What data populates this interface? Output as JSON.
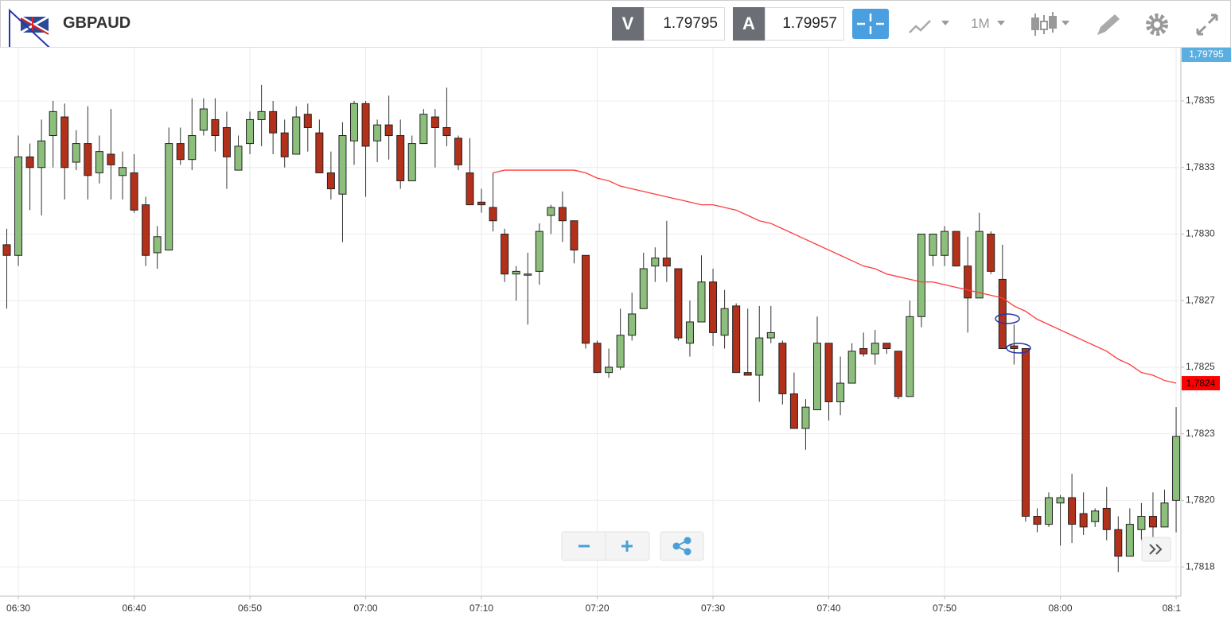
{
  "header": {
    "symbol": "GBPAUD",
    "bid_label": "V",
    "bid": "1.79795",
    "ask_label": "A",
    "ask": "1.79957",
    "timeframe": "1M"
  },
  "chart_data": {
    "type": "candlestick",
    "categories": [
      null,
      "06:30",
      null,
      null,
      null,
      null,
      null,
      null,
      null,
      null,
      null,
      "06:40",
      null,
      null,
      null,
      null,
      null,
      null,
      null,
      null,
      null,
      "06:50",
      null,
      null,
      null,
      null,
      null,
      null,
      null,
      null,
      null,
      "07:00",
      null,
      null,
      null,
      null,
      null,
      null,
      null,
      null,
      null,
      "07:10",
      null,
      null,
      null,
      null,
      null,
      null,
      null,
      null,
      null,
      "07:20",
      null,
      null,
      null,
      null,
      null,
      null,
      null,
      null,
      null,
      "07:30",
      null,
      null,
      null,
      null,
      null,
      null,
      null,
      null,
      null,
      "07:40",
      null,
      null,
      null,
      null,
      null,
      null,
      null,
      null,
      null,
      "07:50",
      null,
      null,
      null,
      null,
      null,
      null,
      null,
      null,
      null,
      "08:00",
      null,
      null,
      null,
      null,
      null,
      null,
      null,
      null,
      null,
      "08:1"
    ],
    "open": [
      1.78296,
      1.78292,
      1.78329,
      1.78325,
      1.78337,
      1.78344,
      1.78327,
      1.78334,
      1.78323,
      1.7833,
      1.78322,
      1.78323,
      1.78311,
      1.78293,
      1.78294,
      1.78334,
      1.78328,
      1.78339,
      1.78343,
      1.7834,
      1.78324,
      1.78334,
      1.78343,
      1.78346,
      1.78338,
      1.7833,
      1.78345,
      1.78338,
      1.78323,
      1.78315,
      1.78335,
      1.78349,
      1.78335,
      1.78341,
      1.78337,
      1.7832,
      1.78334,
      1.78344,
      1.7834,
      1.78336,
      1.78323,
      1.78312,
      1.7831,
      1.783,
      1.78285,
      1.78285,
      1.78286,
      1.78307,
      1.7831,
      1.78305,
      1.78292,
      1.78259,
      1.78248,
      1.7825,
      1.78262,
      1.78272,
      1.78288,
      1.78291,
      1.78287,
      1.78259,
      1.78267,
      1.78282,
      1.78262,
      1.78273,
      1.78248,
      1.78247,
      1.78261,
      1.78259,
      1.7824,
      1.78227,
      1.78234,
      1.78259,
      1.78237,
      1.78244,
      1.78257,
      1.78255,
      1.78259,
      1.78256,
      1.78239,
      1.78269,
      1.78292,
      1.78292,
      1.78301,
      1.78288,
      1.78276,
      1.783,
      1.78283,
      1.78258,
      1.78257,
      1.78194,
      1.78191,
      1.78199,
      1.78201,
      1.78195,
      1.78192,
      1.78197,
      1.78189,
      1.78179,
      1.78189,
      1.78194,
      1.7819,
      1.782
    ],
    "high": [
      1.78302,
      1.78337,
      1.78334,
      1.78343,
      1.7835,
      1.78349,
      1.78339,
      1.78348,
      1.78337,
      1.78347,
      1.78331,
      1.7833,
      1.78314,
      1.78303,
      1.7834,
      1.7834,
      1.78351,
      1.78351,
      1.78351,
      1.78346,
      1.78337,
      1.78346,
      1.78356,
      1.7835,
      1.78343,
      1.78348,
      1.78349,
      1.78343,
      1.78331,
      1.78342,
      1.7835,
      1.7835,
      1.78343,
      1.78352,
      1.78343,
      1.78337,
      1.78347,
      1.78347,
      1.78355,
      1.78337,
      1.78336,
      1.78317,
      1.78323,
      1.78302,
      1.78288,
      1.78293,
      1.78304,
      1.78311,
      1.78316,
      1.78305,
      1.78292,
      1.7826,
      1.78257,
      1.78272,
      1.78278,
      1.78293,
      1.78295,
      1.78305,
      1.78287,
      1.78275,
      1.78292,
      1.78287,
      1.78279,
      1.78274,
      1.78272,
      1.78273,
      1.78273,
      1.7826,
      1.78248,
      1.78238,
      1.78269,
      1.78259,
      1.78254,
      1.78259,
      1.78263,
      1.78264,
      1.78259,
      1.78256,
      1.78275,
      1.783,
      1.783,
      1.78303,
      1.78301,
      1.78299,
      1.78308,
      1.78301,
      1.78296,
      1.78266,
      1.78257,
      1.78197,
      1.78203,
      1.78202,
      1.7821,
      1.78203,
      1.78197,
      1.78205,
      1.78194,
      1.78197,
      1.78199,
      1.78203,
      1.78204,
      1.78235
    ],
    "low": [
      1.78272,
      1.78288,
      1.78309,
      1.78307,
      1.78325,
      1.78313,
      1.78324,
      1.78313,
      1.78319,
      1.78313,
      1.78313,
      1.78308,
      1.78288,
      1.78287,
      1.78294,
      1.78326,
      1.78324,
      1.78337,
      1.78331,
      1.78317,
      1.78324,
      1.7833,
      1.78333,
      1.7833,
      1.78325,
      1.7833,
      1.78331,
      1.78323,
      1.78313,
      1.78297,
      1.78326,
      1.78314,
      1.78327,
      1.78328,
      1.78317,
      1.7832,
      1.78334,
      1.78325,
      1.78333,
      1.78324,
      1.78311,
      1.78308,
      1.78301,
      1.78282,
      1.78275,
      1.78266,
      1.78281,
      1.783,
      1.78297,
      1.78289,
      1.78257,
      1.78248,
      1.78246,
      1.78249,
      1.7826,
      1.78272,
      1.78282,
      1.78282,
      1.7826,
      1.78254,
      1.78267,
      1.78258,
      1.78257,
      1.78248,
      1.78247,
      1.78237,
      1.78259,
      1.78236,
      1.78227,
      1.78219,
      1.78234,
      1.7823,
      1.78232,
      1.78244,
      1.78254,
      1.78251,
      1.78255,
      1.78238,
      1.78239,
      1.78265,
      1.78288,
      1.78288,
      1.78288,
      1.78263,
      1.78276,
      1.78285,
      1.78257,
      1.78251,
      1.78192,
      1.78188,
      1.7819,
      1.78183,
      1.78184,
      1.78187,
      1.7819,
      1.78185,
      1.78173,
      1.78179,
      1.78185,
      1.78185,
      1.7819,
      1.78188
    ],
    "close": [
      1.78292,
      1.78329,
      1.78325,
      1.78335,
      1.78346,
      1.78325,
      1.78334,
      1.78322,
      1.78331,
      1.78326,
      1.78325,
      1.78309,
      1.78292,
      1.78299,
      1.78334,
      1.78328,
      1.78337,
      1.78347,
      1.78337,
      1.78329,
      1.78333,
      1.78343,
      1.78346,
      1.78338,
      1.78329,
      1.78344,
      1.7834,
      1.78323,
      1.78317,
      1.78337,
      1.78349,
      1.78333,
      1.78341,
      1.78337,
      1.7832,
      1.78334,
      1.78345,
      1.7834,
      1.78337,
      1.78326,
      1.78311,
      1.78311,
      1.78305,
      1.78285,
      1.78286,
      1.78285,
      1.78301,
      1.7831,
      1.78305,
      1.78294,
      1.78259,
      1.78248,
      1.7825,
      1.78262,
      1.7827,
      1.78287,
      1.78291,
      1.78288,
      1.78261,
      1.78267,
      1.78282,
      1.78263,
      1.78272,
      1.78248,
      1.78247,
      1.78261,
      1.78263,
      1.7824,
      1.78227,
      1.78235,
      1.78259,
      1.78237,
      1.78244,
      1.78256,
      1.78255,
      1.78259,
      1.78257,
      1.78239,
      1.78269,
      1.783,
      1.783,
      1.78301,
      1.78288,
      1.78276,
      1.78301,
      1.78286,
      1.78257,
      1.78257,
      1.78194,
      1.78191,
      1.78201,
      1.78201,
      1.78191,
      1.7819,
      1.78196,
      1.78189,
      1.78179,
      1.78191,
      1.78194,
      1.7819,
      1.78199,
      1.78224
    ],
    "up_color": "#8dbf7c",
    "down_color": "#b3301a",
    "moving_average": {
      "color": "#ff3b3b",
      "last_label": "1,7824",
      "values": [
        null,
        null,
        null,
        null,
        null,
        null,
        null,
        null,
        null,
        null,
        null,
        null,
        null,
        null,
        null,
        null,
        null,
        null,
        null,
        null,
        null,
        null,
        null,
        null,
        null,
        null,
        null,
        null,
        null,
        null,
        null,
        null,
        null,
        null,
        null,
        null,
        null,
        null,
        null,
        null,
        null,
        null,
        1.78323,
        1.78324,
        1.78324,
        1.78324,
        1.78324,
        1.78324,
        1.78324,
        1.78324,
        1.78323,
        1.78321,
        1.7832,
        1.78318,
        1.78317,
        1.78316,
        1.78315,
        1.78314,
        1.78313,
        1.78312,
        1.78311,
        1.78311,
        1.7831,
        1.78309,
        1.78307,
        1.78305,
        1.78304,
        1.78302,
        1.783,
        1.78298,
        1.78296,
        1.78294,
        1.78292,
        1.7829,
        1.78288,
        1.78287,
        1.78285,
        1.78284,
        1.78283,
        1.78282,
        1.78282,
        1.78281,
        1.7828,
        1.78279,
        1.78278,
        1.78277,
        1.78276,
        1.78273,
        1.78271,
        1.78268,
        1.78266,
        1.78264,
        1.78262,
        1.7826,
        1.78258,
        1.78256,
        1.78253,
        1.78251,
        1.78248,
        1.78247,
        1.78245,
        1.78244
      ]
    },
    "price_tag": "1,79795",
    "ylim": [
      1.78164,
      1.7837
    ],
    "yticks": [
      {
        "value": 1.78175,
        "label": "1,7818"
      },
      {
        "value": 1.782,
        "label": "1,7820"
      },
      {
        "value": 1.78225,
        "label": "1,7823"
      },
      {
        "value": 1.7825,
        "label": "1,7825"
      },
      {
        "value": 1.78275,
        "label": "1,7827"
      },
      {
        "value": 1.783,
        "label": "1,7830"
      },
      {
        "value": 1.78325,
        "label": "1,7833"
      },
      {
        "value": 1.7835,
        "label": "1,7835"
      }
    ],
    "grid": true
  }
}
